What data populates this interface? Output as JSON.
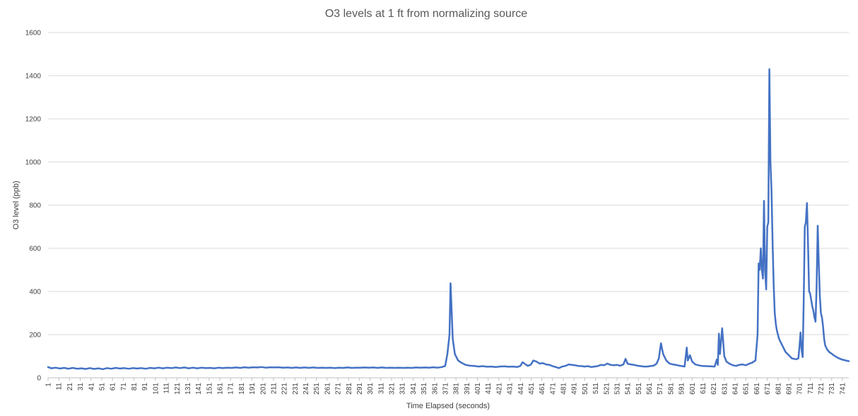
{
  "chart_data": {
    "type": "line",
    "title": "O3 levels at 1 ft from normalizing source",
    "xlabel": "Time Elapsed (seconds)",
    "ylabel": "O3 level (ppb)",
    "ylim": [
      0,
      1600
    ],
    "yticks": [
      0,
      200,
      400,
      600,
      800,
      1000,
      1200,
      1400,
      1600
    ],
    "xlim": [
      1,
      747
    ],
    "xtick_start": 1,
    "xtick_step": 10,
    "grid": true,
    "legend": "none",
    "series": [
      {
        "color": "#4472c4",
        "points": [
          [
            1,
            50
          ],
          [
            4,
            44
          ],
          [
            8,
            47
          ],
          [
            12,
            43
          ],
          [
            16,
            46
          ],
          [
            20,
            42
          ],
          [
            24,
            46
          ],
          [
            28,
            42
          ],
          [
            32,
            44
          ],
          [
            36,
            41
          ],
          [
            40,
            45
          ],
          [
            44,
            41
          ],
          [
            48,
            44
          ],
          [
            52,
            40
          ],
          [
            56,
            45
          ],
          [
            60,
            42
          ],
          [
            64,
            46
          ],
          [
            68,
            43
          ],
          [
            72,
            45
          ],
          [
            76,
            42
          ],
          [
            80,
            45
          ],
          [
            84,
            43
          ],
          [
            88,
            45
          ],
          [
            92,
            42
          ],
          [
            96,
            46
          ],
          [
            100,
            44
          ],
          [
            104,
            47
          ],
          [
            108,
            44
          ],
          [
            112,
            47
          ],
          [
            116,
            45
          ],
          [
            120,
            48
          ],
          [
            124,
            45
          ],
          [
            128,
            48
          ],
          [
            132,
            44
          ],
          [
            136,
            47
          ],
          [
            140,
            44
          ],
          [
            144,
            47
          ],
          [
            148,
            45
          ],
          [
            152,
            46
          ],
          [
            156,
            44
          ],
          [
            160,
            47
          ],
          [
            164,
            45
          ],
          [
            168,
            47
          ],
          [
            172,
            46
          ],
          [
            176,
            48
          ],
          [
            180,
            46
          ],
          [
            184,
            49
          ],
          [
            188,
            47
          ],
          [
            192,
            49
          ],
          [
            196,
            48
          ],
          [
            200,
            50
          ],
          [
            204,
            47
          ],
          [
            208,
            49
          ],
          [
            212,
            48
          ],
          [
            216,
            49
          ],
          [
            220,
            47
          ],
          [
            224,
            48
          ],
          [
            228,
            46
          ],
          [
            232,
            48
          ],
          [
            236,
            46
          ],
          [
            240,
            48
          ],
          [
            244,
            46
          ],
          [
            248,
            48
          ],
          [
            252,
            46
          ],
          [
            256,
            47
          ],
          [
            260,
            46
          ],
          [
            264,
            47
          ],
          [
            268,
            45
          ],
          [
            272,
            47
          ],
          [
            276,
            46
          ],
          [
            280,
            48
          ],
          [
            284,
            46
          ],
          [
            288,
            47
          ],
          [
            292,
            47
          ],
          [
            296,
            48
          ],
          [
            300,
            47
          ],
          [
            304,
            48
          ],
          [
            308,
            46
          ],
          [
            312,
            48
          ],
          [
            316,
            46
          ],
          [
            320,
            47
          ],
          [
            324,
            46
          ],
          [
            328,
            47
          ],
          [
            332,
            46
          ],
          [
            336,
            47
          ],
          [
            340,
            46
          ],
          [
            344,
            48
          ],
          [
            348,
            47
          ],
          [
            352,
            48
          ],
          [
            356,
            47
          ],
          [
            360,
            49
          ],
          [
            364,
            47
          ],
          [
            368,
            50
          ],
          [
            371,
            55
          ],
          [
            373,
            110
          ],
          [
            375,
            200
          ],
          [
            376,
            438
          ],
          [
            378,
            180
          ],
          [
            380,
            110
          ],
          [
            383,
            80
          ],
          [
            386,
            70
          ],
          [
            390,
            60
          ],
          [
            394,
            56
          ],
          [
            398,
            55
          ],
          [
            402,
            52
          ],
          [
            406,
            54
          ],
          [
            410,
            51
          ],
          [
            414,
            52
          ],
          [
            418,
            50
          ],
          [
            422,
            52
          ],
          [
            426,
            53
          ],
          [
            430,
            51
          ],
          [
            434,
            52
          ],
          [
            438,
            50
          ],
          [
            441,
            55
          ],
          [
            443,
            72
          ],
          [
            446,
            62
          ],
          [
            448,
            55
          ],
          [
            451,
            62
          ],
          [
            453,
            80
          ],
          [
            456,
            75
          ],
          [
            459,
            66
          ],
          [
            462,
            68
          ],
          [
            465,
            62
          ],
          [
            468,
            60
          ],
          [
            471,
            54
          ],
          [
            474,
            50
          ],
          [
            477,
            45
          ],
          [
            480,
            52
          ],
          [
            483,
            55
          ],
          [
            486,
            62
          ],
          [
            489,
            60
          ],
          [
            492,
            58
          ],
          [
            495,
            55
          ],
          [
            498,
            54
          ],
          [
            501,
            52
          ],
          [
            504,
            54
          ],
          [
            507,
            50
          ],
          [
            510,
            52
          ],
          [
            513,
            54
          ],
          [
            516,
            60
          ],
          [
            519,
            58
          ],
          [
            522,
            66
          ],
          [
            525,
            60
          ],
          [
            528,
            58
          ],
          [
            531,
            60
          ],
          [
            534,
            56
          ],
          [
            537,
            62
          ],
          [
            539,
            88
          ],
          [
            541,
            65
          ],
          [
            544,
            62
          ],
          [
            547,
            60
          ],
          [
            550,
            56
          ],
          [
            553,
            54
          ],
          [
            556,
            52
          ],
          [
            559,
            52
          ],
          [
            562,
            54
          ],
          [
            565,
            56
          ],
          [
            568,
            66
          ],
          [
            570,
            90
          ],
          [
            572,
            160
          ],
          [
            574,
            110
          ],
          [
            577,
            80
          ],
          [
            580,
            66
          ],
          [
            583,
            62
          ],
          [
            586,
            60
          ],
          [
            589,
            56
          ],
          [
            592,
            54
          ],
          [
            594,
            52
          ],
          [
            596,
            140
          ],
          [
            597,
            80
          ],
          [
            599,
            105
          ],
          [
            601,
            75
          ],
          [
            604,
            62
          ],
          [
            607,
            58
          ],
          [
            610,
            55
          ],
          [
            614,
            54
          ],
          [
            618,
            53
          ],
          [
            622,
            52
          ],
          [
            624,
            85
          ],
          [
            625,
            60
          ],
          [
            626,
            205
          ],
          [
            627,
            110
          ],
          [
            629,
            230
          ],
          [
            631,
            100
          ],
          [
            633,
            75
          ],
          [
            636,
            65
          ],
          [
            639,
            58
          ],
          [
            642,
            55
          ],
          [
            645,
            60
          ],
          [
            648,
            62
          ],
          [
            651,
            58
          ],
          [
            654,
            65
          ],
          [
            657,
            70
          ],
          [
            660,
            80
          ],
          [
            662,
            200
          ],
          [
            663,
            530
          ],
          [
            664,
            500
          ],
          [
            665,
            600
          ],
          [
            666,
            500
          ],
          [
            667,
            460
          ],
          [
            668,
            820
          ],
          [
            669,
            500
          ],
          [
            670,
            410
          ],
          [
            671,
            700
          ],
          [
            672,
            720
          ],
          [
            673,
            1430
          ],
          [
            674,
            1000
          ],
          [
            675,
            870
          ],
          [
            676,
            620
          ],
          [
            677,
            430
          ],
          [
            678,
            300
          ],
          [
            679,
            250
          ],
          [
            680,
            220
          ],
          [
            682,
            180
          ],
          [
            684,
            160
          ],
          [
            686,
            140
          ],
          [
            688,
            120
          ],
          [
            690,
            110
          ],
          [
            692,
            100
          ],
          [
            694,
            90
          ],
          [
            696,
            88
          ],
          [
            698,
            86
          ],
          [
            700,
            90
          ],
          [
            701,
            140
          ],
          [
            702,
            210
          ],
          [
            703,
            130
          ],
          [
            704,
            96
          ],
          [
            705,
            360
          ],
          [
            706,
            700
          ],
          [
            707,
            720
          ],
          [
            708,
            810
          ],
          [
            709,
            620
          ],
          [
            710,
            400
          ],
          [
            711,
            390
          ],
          [
            712,
            360
          ],
          [
            713,
            330
          ],
          [
            714,
            310
          ],
          [
            715,
            280
          ],
          [
            716,
            260
          ],
          [
            717,
            420
          ],
          [
            718,
            705
          ],
          [
            719,
            530
          ],
          [
            720,
            380
          ],
          [
            721,
            300
          ],
          [
            722,
            280
          ],
          [
            723,
            240
          ],
          [
            724,
            180
          ],
          [
            725,
            150
          ],
          [
            727,
            130
          ],
          [
            729,
            118
          ],
          [
            731,
            112
          ],
          [
            733,
            104
          ],
          [
            735,
            98
          ],
          [
            737,
            92
          ],
          [
            739,
            88
          ],
          [
            741,
            84
          ],
          [
            743,
            82
          ],
          [
            745,
            79
          ],
          [
            747,
            77
          ]
        ]
      }
    ]
  }
}
